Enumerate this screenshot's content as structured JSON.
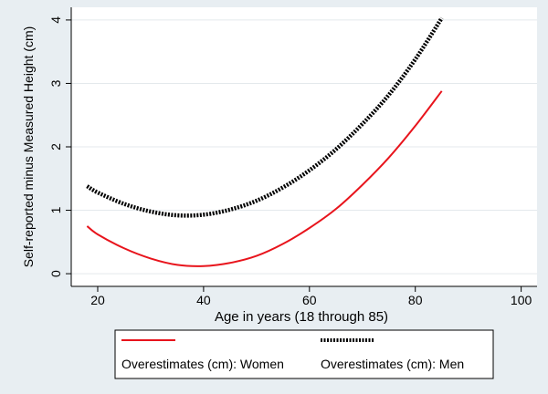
{
  "chart_data": {
    "type": "line",
    "title": "",
    "xlabel": "Age in years (18 through 85)",
    "ylabel": "Self-reported minus Measured Height (cm)",
    "xlim": [
      15,
      103
    ],
    "ylim": [
      -0.2,
      4.2
    ],
    "xticks": [
      20,
      40,
      60,
      80,
      100
    ],
    "yticks": [
      0,
      1,
      2,
      3,
      4
    ],
    "grid": true,
    "legend_position": "bottom",
    "series": [
      {
        "name": "Overestimates (cm): Women",
        "color": "#e8141c",
        "style": "solid",
        "x": [
          18,
          20,
          25,
          30,
          35,
          40,
          45,
          50,
          55,
          60,
          65,
          70,
          75,
          80,
          85
        ],
        "y": [
          0.75,
          0.62,
          0.4,
          0.24,
          0.14,
          0.12,
          0.17,
          0.28,
          0.47,
          0.72,
          1.02,
          1.4,
          1.83,
          2.33,
          2.88
        ]
      },
      {
        "name": "Overestimates (cm): Men",
        "color": "#000000",
        "style": "dotted-thick",
        "x": [
          18,
          20,
          25,
          30,
          35,
          40,
          45,
          50,
          55,
          60,
          65,
          70,
          75,
          80,
          85
        ],
        "y": [
          1.38,
          1.28,
          1.1,
          0.98,
          0.92,
          0.93,
          1.01,
          1.15,
          1.36,
          1.63,
          1.96,
          2.36,
          2.82,
          3.38,
          4.03
        ]
      }
    ]
  }
}
